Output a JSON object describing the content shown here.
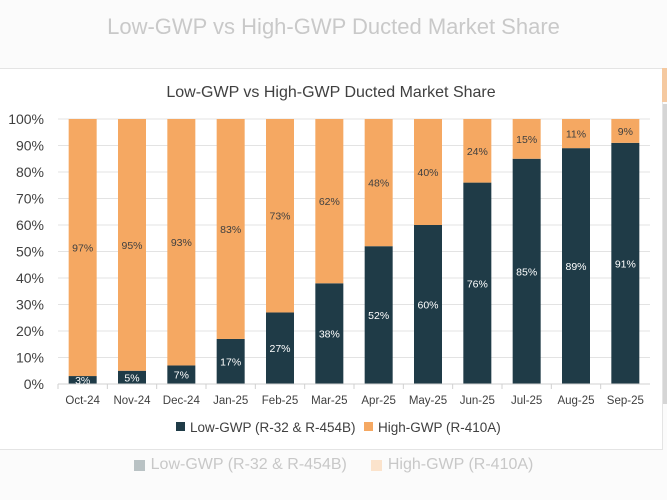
{
  "background": {
    "title": "Low-GWP vs High-GWP Ducted Market Share",
    "legend": [
      "Low-GWP (R-32 & R-454B)",
      "High-GWP (R-410A)"
    ]
  },
  "colors": {
    "low": "#1f3b47",
    "high": "#f5a862",
    "low_faded": "#b9c2c4",
    "high_faded": "#fbe3cc"
  },
  "chart_data": {
    "type": "bar",
    "stacked": true,
    "title": "Low-GWP vs High-GWP Ducted Market Share",
    "categories": [
      "Oct-24",
      "Nov-24",
      "Dec-24",
      "Jan-25",
      "Feb-25",
      "Mar-25",
      "Apr-25",
      "May-25",
      "Jun-25",
      "Jul-25",
      "Aug-25",
      "Sep-25"
    ],
    "series": [
      {
        "name": "Low-GWP (R-32 & R-454B)",
        "values": [
          3,
          5,
          7,
          17,
          27,
          38,
          52,
          60,
          76,
          85,
          89,
          91
        ]
      },
      {
        "name": "High-GWP (R-410A)",
        "values": [
          97,
          95,
          93,
          83,
          73,
          62,
          48,
          40,
          24,
          15,
          11,
          9
        ]
      }
    ],
    "yticks": [
      "0%",
      "10%",
      "20%",
      "30%",
      "40%",
      "50%",
      "60%",
      "70%",
      "80%",
      "90%",
      "100%"
    ],
    "ylim": [
      0,
      100
    ],
    "grid": true,
    "legend_position": "bottom"
  }
}
